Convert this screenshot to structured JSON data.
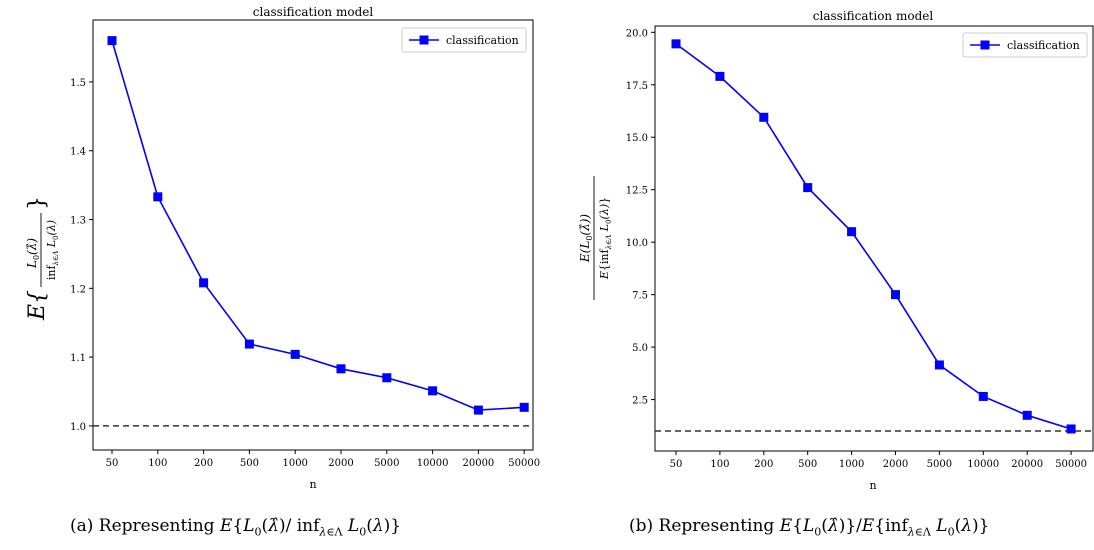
{
  "chart_data": [
    {
      "type": "line",
      "title": "classification model",
      "xlabel": "n",
      "ylabel": "E{L0(λ̂)/inf_{λ∈Λ} L0(λ)}",
      "categories": [
        "50",
        "100",
        "200",
        "500",
        "1000",
        "2000",
        "5000",
        "10000",
        "20000",
        "50000"
      ],
      "series": [
        {
          "name": "classification",
          "color": "#0000ff",
          "marker": "square",
          "values": [
            1.56,
            1.333,
            1.208,
            1.119,
            1.104,
            1.083,
            1.07,
            1.051,
            1.023,
            1.027
          ]
        }
      ],
      "reference_line": {
        "y": 1.0,
        "style": "dashed",
        "color": "#333333"
      },
      "ylim": [
        0.965,
        1.59
      ],
      "yticks": [
        1.0,
        1.1,
        1.2,
        1.3,
        1.4,
        1.5
      ],
      "ytick_labels": [
        "1.0",
        "1.1",
        "1.2",
        "1.3",
        "1.4",
        "1.5"
      ],
      "legend": "top-right",
      "caption": "(a) Representing E{L0(λ̂)/inf_{λ∈Λ} L0(λ)}"
    },
    {
      "type": "line",
      "title": "classification model",
      "xlabel": "n",
      "ylabel": "E(L0(λ̂))/E{inf_{λ∈Λ} L0(λ)}",
      "categories": [
        "50",
        "100",
        "200",
        "500",
        "1000",
        "2000",
        "5000",
        "10000",
        "20000",
        "50000"
      ],
      "series": [
        {
          "name": "classification",
          "color": "#0000ff",
          "marker": "square",
          "values": [
            19.45,
            17.9,
            15.95,
            12.6,
            10.5,
            7.5,
            4.15,
            2.65,
            1.75,
            1.1
          ]
        }
      ],
      "reference_line": {
        "y": 1.0,
        "style": "dashed",
        "color": "#333333"
      },
      "ylim": [
        0.05,
        20.3
      ],
      "yticks": [
        2.5,
        5.0,
        7.5,
        10.0,
        12.5,
        15.0,
        17.5,
        20.0
      ],
      "ytick_labels": [
        "2.5",
        "5.0",
        "7.5",
        "10.0",
        "12.5",
        "15.0",
        "17.5",
        "20.0"
      ],
      "legend": "top-right",
      "caption": "(b) Representing E{L0(λ̂)}/E{inf_{λ∈Λ} L0(λ)}"
    }
  ]
}
